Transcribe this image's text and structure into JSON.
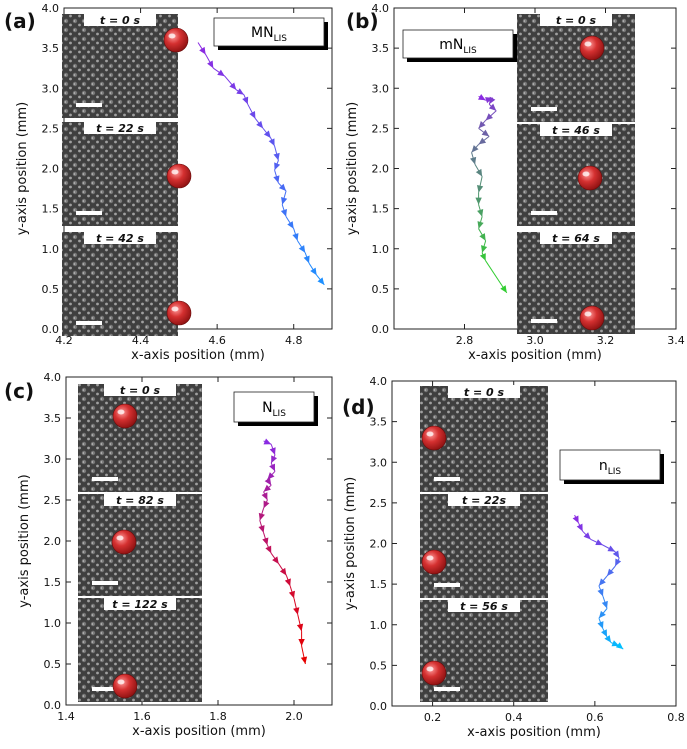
{
  "figure": {
    "panels": [
      {
        "id": "a",
        "label": "(a)",
        "legend": {
          "main": "MN",
          "sub": "LIS"
        },
        "frames": [
          "t = 0 s",
          "t = 22 s",
          "t = 42 s"
        ],
        "ball_color": "#c0282a"
      },
      {
        "id": "b",
        "label": "(b)",
        "legend": {
          "main": "mN",
          "sub": "LIS"
        },
        "frames": [
          "t = 0 s",
          "t = 46 s",
          "t = 64 s"
        ],
        "ball_color": "#c0282a"
      },
      {
        "id": "c",
        "label": "(c)",
        "legend": {
          "main": "N",
          "sub": "LIS"
        },
        "frames": [
          "t = 0 s",
          "t = 82 s",
          "t = 122 s"
        ],
        "ball_color": "#c0282a"
      },
      {
        "id": "d",
        "label": "(d)",
        "legend": {
          "main": "n",
          "sub": "LIS"
        },
        "frames": [
          "t = 0 s",
          "t = 22s",
          "t = 56 s"
        ],
        "ball_color": "#c0282a"
      }
    ]
  },
  "chart_data": [
    {
      "type": "line",
      "panel": "a",
      "xlabel": "x-axis position (mm)",
      "ylabel": "y-axis position (mm)",
      "xlim": [
        4.2,
        4.9
      ],
      "ylim": [
        0.0,
        4.0
      ],
      "xticks": [
        "4.2",
        "4.4",
        "4.6",
        "4.8"
      ],
      "xtick_values": [
        4.2,
        4.4,
        4.6,
        4.8
      ],
      "yticks": [
        "0.0",
        "0.5",
        "1.0",
        "1.5",
        "2.0",
        "2.5",
        "3.0",
        "3.5",
        "4.0"
      ],
      "ytick_values": [
        0,
        0.5,
        1.0,
        1.5,
        2.0,
        2.5,
        3.0,
        3.5,
        4.0
      ],
      "color_range": [
        "#8a2be2",
        "#1e90ff"
      ],
      "x": [
        4.55,
        4.57,
        4.59,
        4.62,
        4.65,
        4.67,
        4.68,
        4.7,
        4.72,
        4.74,
        4.75,
        4.76,
        4.75,
        4.76,
        4.78,
        4.77,
        4.78,
        4.8,
        4.81,
        4.83,
        4.84,
        4.86,
        4.88
      ],
      "y": [
        3.57,
        3.42,
        3.25,
        3.15,
        2.98,
        2.92,
        2.8,
        2.62,
        2.5,
        2.38,
        2.28,
        2.1,
        1.98,
        1.82,
        1.72,
        1.55,
        1.4,
        1.25,
        1.1,
        0.95,
        0.82,
        0.67,
        0.55
      ]
    },
    {
      "type": "line",
      "panel": "b",
      "xlabel": "x-axis position (mm)",
      "ylabel": "y-axis position (mm)",
      "xlim": [
        2.6,
        3.4
      ],
      "ylim": [
        0.0,
        4.0
      ],
      "xticks": [
        "2.8",
        "3.0",
        "3.2",
        "3.4"
      ],
      "xtick_values": [
        2.8,
        3.0,
        3.2,
        3.4
      ],
      "yticks": [
        "0.0",
        "0.5",
        "1.0",
        "1.5",
        "2.0",
        "2.5",
        "3.0",
        "3.5",
        "4.0"
      ],
      "ytick_values": [
        0,
        0.5,
        1.0,
        1.5,
        2.0,
        2.5,
        3.0,
        3.5,
        4.0
      ],
      "color_range": [
        "#8a2be2",
        "#32cd32"
      ],
      "x": [
        2.84,
        2.86,
        2.88,
        2.87,
        2.89,
        2.86,
        2.84,
        2.87,
        2.84,
        2.82,
        2.83,
        2.85,
        2.84,
        2.84,
        2.85,
        2.84,
        2.86,
        2.85,
        2.86,
        2.92
      ],
      "y": [
        2.9,
        2.85,
        2.88,
        2.8,
        2.72,
        2.6,
        2.5,
        2.4,
        2.3,
        2.2,
        2.05,
        1.9,
        1.7,
        1.55,
        1.4,
        1.25,
        1.1,
        0.95,
        0.85,
        0.45
      ]
    },
    {
      "type": "line",
      "panel": "c",
      "xlabel": "x-axis position (mm)",
      "ylabel": "y-axis position (mm)",
      "xlim": [
        1.4,
        2.1
      ],
      "ylim": [
        0.0,
        4.0
      ],
      "xticks": [
        "1.4",
        "1.6",
        "1.8",
        "2.0"
      ],
      "xtick_values": [
        1.4,
        1.6,
        1.8,
        2.0
      ],
      "yticks": [
        "0.0",
        "0.5",
        "1.0",
        "1.5",
        "2.0",
        "2.5",
        "3.0",
        "3.5",
        "4.0"
      ],
      "ytick_values": [
        0,
        0.5,
        1.0,
        1.5,
        2.0,
        2.5,
        3.0,
        3.5,
        4.0
      ],
      "color_range": [
        "#8a2be2",
        "#e60000"
      ],
      "x": [
        1.92,
        1.94,
        1.95,
        1.94,
        1.95,
        1.93,
        1.94,
        1.92,
        1.93,
        1.92,
        1.91,
        1.92,
        1.93,
        1.94,
        1.96,
        1.98,
        1.99,
        2.0,
        2.01,
        2.02,
        2.02,
        2.03
      ],
      "y": [
        3.22,
        3.18,
        3.05,
        2.95,
        2.85,
        2.75,
        2.68,
        2.6,
        2.5,
        2.4,
        2.25,
        2.1,
        1.95,
        1.85,
        1.72,
        1.58,
        1.45,
        1.3,
        1.1,
        0.9,
        0.72,
        0.5
      ]
    },
    {
      "type": "line",
      "panel": "d",
      "xlabel": "x-axis position (mm)",
      "ylabel": "y-axis position (mm)",
      "xlim": [
        0.1,
        0.8
      ],
      "ylim": [
        0.0,
        4.0
      ],
      "xticks": [
        "0.2",
        "0.4",
        "0.6",
        "0.8"
      ],
      "xtick_values": [
        0.2,
        0.4,
        0.6,
        0.8
      ],
      "yticks": [
        "0.0",
        "0.5",
        "1.0",
        "1.5",
        "2.0",
        "2.5",
        "3.0",
        "3.5",
        "4.0"
      ],
      "ytick_values": [
        0,
        0.5,
        1.0,
        1.5,
        2.0,
        2.5,
        3.0,
        3.5,
        4.0
      ],
      "color_range": [
        "#8a2be2",
        "#00bfff"
      ],
      "x": [
        0.55,
        0.56,
        0.57,
        0.59,
        0.62,
        0.65,
        0.66,
        0.65,
        0.63,
        0.61,
        0.62,
        0.63,
        0.61,
        0.62,
        0.63,
        0.64,
        0.66,
        0.67
      ],
      "y": [
        2.35,
        2.25,
        2.15,
        2.05,
        1.98,
        1.9,
        1.82,
        1.72,
        1.6,
        1.48,
        1.35,
        1.2,
        1.08,
        0.95,
        0.85,
        0.78,
        0.74,
        0.7
      ]
    }
  ]
}
